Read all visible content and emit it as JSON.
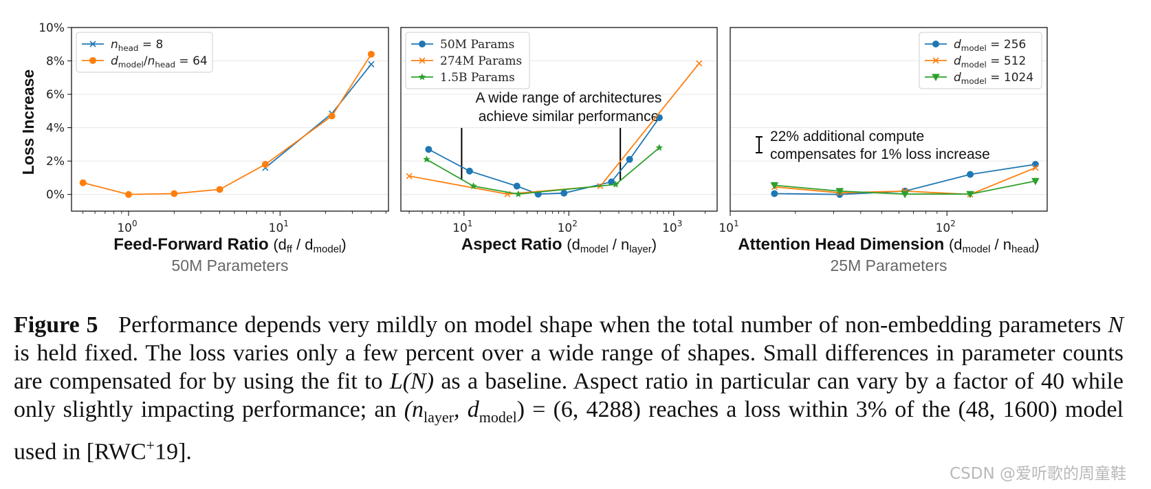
{
  "chart_data": [
    {
      "type": "line",
      "ylabel": "Loss Increase",
      "yticks": [
        "10%",
        "8%",
        "6%",
        "4%",
        "2%",
        "0%"
      ],
      "ylim": [
        -1,
        10
      ],
      "x_scale": "log",
      "xlim": [
        0.42,
        52
      ],
      "xticks": [
        {
          "value": 1,
          "base": "10",
          "exp": "0"
        },
        {
          "value": 10,
          "base": "10",
          "exp": "1"
        }
      ],
      "xlabel": {
        "bold": "Feed-Forward Ratio",
        "rest": "(d",
        "sub1": "ff",
        "mid": " / d",
        "sub2": "model",
        "end": ")"
      },
      "subtitle": "50M Parameters",
      "legend_position": "top-left",
      "series": [
        {
          "name": {
            "var": "n",
            "sub": "head",
            "rest": " = 8"
          },
          "color": "#1f77b4",
          "marker": "x",
          "x": [
            8,
            22,
            40
          ],
          "y": [
            1.6,
            4.85,
            7.8
          ]
        },
        {
          "name": {
            "var": "d",
            "sub": "model",
            "mid": "/",
            "var2": "n",
            "sub2": "head",
            "rest": " = 64"
          },
          "color": "#ff7f0e",
          "marker": "circle",
          "x": [
            0.5,
            1,
            2,
            4,
            8,
            22,
            40
          ],
          "y": [
            0.7,
            0.0,
            0.05,
            0.3,
            1.8,
            4.7,
            8.4
          ]
        }
      ]
    },
    {
      "type": "line",
      "x_scale": "log",
      "ylim": [
        -1,
        10
      ],
      "xlim": [
        2.5,
        2600
      ],
      "xticks": [
        {
          "value": 10,
          "base": "10",
          "exp": "1"
        },
        {
          "value": 100,
          "base": "10",
          "exp": "2"
        },
        {
          "value": 1000,
          "base": "10",
          "exp": "3"
        }
      ],
      "xlabel": {
        "bold": "Aspect Ratio",
        "rest": "(d",
        "sub1": "model",
        "mid": " / n",
        "sub2": "layer",
        "end": ")"
      },
      "legend_position": "top-left",
      "annotation": {
        "line1": "A wide range of architectures",
        "line2": "achieve similar performance",
        "markers_x": [
          9.5,
          310
        ]
      },
      "series": [
        {
          "name": "50M Params",
          "color": "#1f77b4",
          "marker": "circle",
          "x": [
            4.6,
            11.3,
            32,
            51,
            90,
            255,
            380,
            730
          ],
          "y": [
            2.7,
            1.4,
            0.5,
            0.02,
            0.08,
            0.75,
            2.1,
            4.6
          ]
        },
        {
          "name": "274M Params",
          "color": "#ff7f0e",
          "marker": "x",
          "x": [
            3.0,
            26,
            200,
            1750
          ],
          "y": [
            1.1,
            0.02,
            0.5,
            7.85
          ]
        },
        {
          "name": "1.5B Params",
          "color": "#2ca02c",
          "marker": "star",
          "x": [
            4.4,
            12.3,
            33,
            280,
            730
          ],
          "y": [
            2.1,
            0.5,
            0.02,
            0.6,
            2.8
          ]
        }
      ]
    },
    {
      "type": "line",
      "x_scale": "log",
      "ylim": [
        -1,
        10
      ],
      "xlim": [
        10,
        290
      ],
      "xticks": [
        {
          "value": 10,
          "base": "10",
          "exp": "1"
        },
        {
          "value": 100,
          "base": "10",
          "exp": "2"
        }
      ],
      "xlabel": {
        "bold": "Attention Head Dimension",
        "rest": "(d",
        "sub1": "model",
        "mid": " / n",
        "sub2": "head",
        "end": ")"
      },
      "subtitle": "25M Parameters",
      "legend_position": "top-right",
      "annotation": {
        "line1": "22% additional compute",
        "line2": "compensates for 1% loss increase"
      },
      "series": [
        {
          "name": {
            "var": "d",
            "sub": "model",
            "rest": " = 256"
          },
          "color": "#1f77b4",
          "marker": "circle",
          "x": [
            16,
            32,
            64,
            128,
            256
          ],
          "y": [
            0.05,
            0.0,
            0.2,
            1.2,
            1.8
          ]
        },
        {
          "name": {
            "var": "d",
            "sub": "model",
            "rest": " = 512"
          },
          "color": "#ff7f0e",
          "marker": "x",
          "x": [
            16,
            32,
            64,
            128,
            256
          ],
          "y": [
            0.45,
            0.1,
            0.2,
            0.0,
            1.6
          ]
        },
        {
          "name": {
            "var": "d",
            "sub": "model",
            "rest": " = 1024"
          },
          "color": "#2ca02c",
          "marker": "triangle-down",
          "x": [
            16,
            32,
            64,
            128,
            256
          ],
          "y": [
            0.55,
            0.2,
            0.02,
            0.02,
            0.8
          ]
        }
      ]
    }
  ],
  "caption": {
    "label": "Figure 5",
    "p1": "Performance depends very mildly on model shape when the total number of non-embedding parameters ",
    "N1": "N",
    "p2": " is held fixed. The loss varies only a few percent over a wide range of shapes. Small differences in parameter counts are compensated for by using the fit to ",
    "LN": "L(N)",
    "p3": " as a baseline. Aspect ratio in particular can vary by a factor of 40 while only slightly impacting performance; an ",
    "tuple": "(n",
    "tsub1": "layer",
    "tmid": ", d",
    "tsub2": "model",
    "tend": ") = (6, 4288)",
    "p4": " reaches a loss within 3% of the ",
    "tuple2": "(48, 1600)",
    "p5": " model used in [RWC",
    "sup": "+",
    "p6": "19]."
  },
  "watermark": "CSDN @爱听歌的周童鞋"
}
